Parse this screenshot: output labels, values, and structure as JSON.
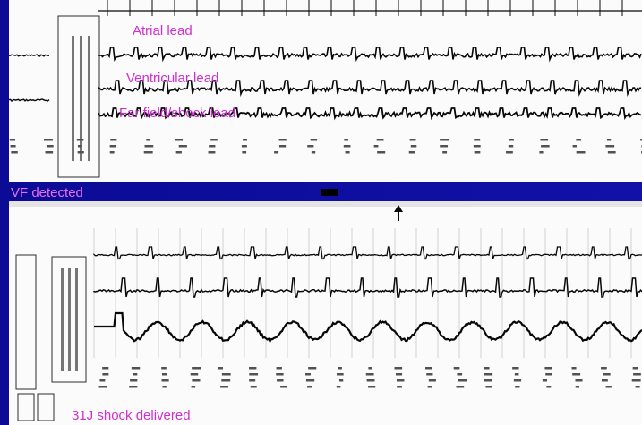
{
  "labels": {
    "atrial_lead": "Atrial lead",
    "ventricular_lead": "Ventricular lead",
    "far_field_lead": "Far field/shock lead",
    "vf_detected": "VF detected",
    "shock_delivered": "31J shock delivered"
  },
  "colors": {
    "background": "#1111a8",
    "annotation": "#d02fd0",
    "paper": "#f2f2f2",
    "trace": "#111111"
  },
  "icons": {
    "episode_marker": "black-rectangle-marker"
  }
}
